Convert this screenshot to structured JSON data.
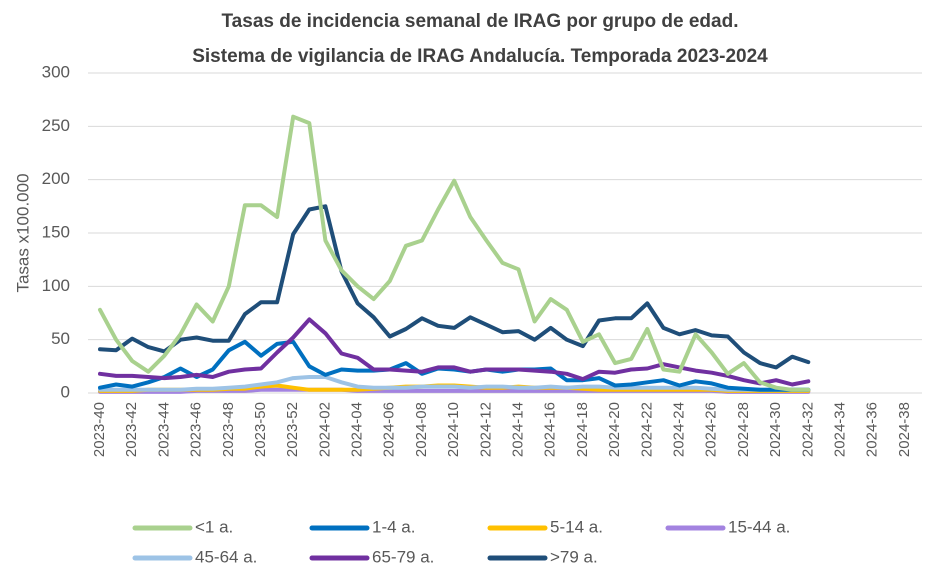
{
  "chart_data": {
    "type": "line",
    "title": [
      "Tasas de incidencia semanal de IRAG por grupo de edad.",
      "Sistema de vigilancia de IRAG Andalucía. Temporada 2023-2024"
    ],
    "y_label": "Tasas x100.000",
    "categories": [
      "2023-40",
      null,
      "2023-42",
      null,
      "2023-44",
      null,
      "2023-46",
      null,
      "2023-48",
      null,
      "2023-50",
      null,
      "2023-52",
      null,
      "2024-02",
      null,
      "2024-04",
      null,
      "2024-06",
      null,
      "2024-08",
      null,
      "2024-10",
      null,
      "2024-12",
      null,
      "2024-14",
      null,
      "2024-16",
      null,
      "2024-18",
      null,
      "2024-20",
      null,
      "2024-22",
      null,
      "2024-24",
      null,
      "2024-26",
      null,
      "2024-28",
      null,
      "2024-30",
      null,
      "2024-32",
      null,
      "2024-34",
      null,
      "2024-36",
      null,
      "2024-38",
      null
    ],
    "ylim": [
      0,
      300
    ],
    "yticks": [
      0,
      50,
      100,
      150,
      200,
      250,
      300
    ],
    "grid": true,
    "series": [
      {
        "name": "<1 a.",
        "color": "#a9d18e",
        "values": [
          78,
          50,
          30,
          20,
          35,
          55,
          83,
          67,
          100,
          176,
          176,
          165,
          259,
          253,
          143,
          115,
          100,
          88,
          105,
          138,
          143,
          172,
          199,
          165,
          143,
          122,
          116,
          67,
          88,
          78,
          48,
          55,
          28,
          32,
          60,
          22,
          20,
          55,
          38,
          18,
          28,
          10,
          5,
          3,
          3,
          null,
          null,
          null,
          null,
          null,
          null,
          null
        ]
      },
      {
        "name": "1-4 a.",
        "color": "#0070c0",
        "values": [
          5,
          8,
          6,
          10,
          15,
          23,
          15,
          22,
          40,
          48,
          35,
          46,
          48,
          25,
          17,
          22,
          21,
          21,
          22,
          28,
          18,
          23,
          22,
          20,
          22,
          20,
          22,
          22,
          23,
          12,
          12,
          14,
          7,
          8,
          10,
          12,
          7,
          11,
          9,
          5,
          4,
          3,
          3,
          3,
          3,
          null,
          null,
          null,
          null,
          null,
          null,
          null
        ]
      },
      {
        "name": "5-14 a.",
        "color": "#ffc000",
        "values": [
          2,
          2,
          2,
          3,
          3,
          3,
          3,
          3,
          4,
          4,
          6,
          7,
          5,
          3,
          3,
          3,
          3,
          4,
          5,
          6,
          6,
          7,
          7,
          6,
          5,
          5,
          6,
          5,
          5,
          5,
          4,
          3,
          3,
          3,
          3,
          3,
          3,
          3,
          3,
          2,
          2,
          2,
          2,
          2,
          2,
          null,
          null,
          null,
          null,
          null,
          null,
          null
        ]
      },
      {
        "name": "15-44 a.",
        "color": "#a383e0",
        "values": [
          1,
          1,
          1,
          1,
          1,
          1,
          2,
          2,
          2,
          2,
          3,
          3,
          3,
          3,
          3,
          3,
          2,
          2,
          2,
          2,
          2,
          2,
          2,
          2,
          2,
          2,
          2,
          2,
          2,
          2,
          2,
          2,
          2,
          2,
          2,
          2,
          2,
          2,
          2,
          1,
          1,
          1,
          1,
          1,
          1,
          null,
          null,
          null,
          null,
          null,
          null,
          null
        ]
      },
      {
        "name": "45-64 a.",
        "color": "#9dc3e6",
        "values": [
          3,
          3,
          3,
          3,
          3,
          3,
          4,
          4,
          5,
          6,
          8,
          10,
          14,
          15,
          15,
          10,
          6,
          5,
          5,
          5,
          6,
          6,
          6,
          5,
          6,
          6,
          5,
          5,
          6,
          5,
          6,
          6,
          5,
          5,
          5,
          5,
          5,
          5,
          4,
          3,
          3,
          3,
          3,
          3,
          3,
          null,
          null,
          null,
          null,
          null,
          null,
          null
        ]
      },
      {
        "name": "65-79 a.",
        "color": "#7030a0",
        "values": [
          18,
          16,
          16,
          15,
          14,
          15,
          17,
          15,
          20,
          22,
          23,
          38,
          52,
          69,
          56,
          37,
          33,
          22,
          22,
          21,
          20,
          24,
          24,
          20,
          22,
          22,
          22,
          21,
          20,
          18,
          13,
          20,
          19,
          22,
          23,
          27,
          24,
          21,
          19,
          16,
          12,
          9,
          12,
          8,
          11,
          null,
          null,
          null,
          null,
          null,
          null,
          null
        ]
      },
      {
        "name": ">79 a.",
        "color": "#1f4e79",
        "values": [
          41,
          40,
          51,
          43,
          39,
          50,
          52,
          49,
          49,
          74,
          85,
          85,
          149,
          172,
          175,
          114,
          84,
          71,
          53,
          60,
          70,
          63,
          61,
          71,
          64,
          57,
          58,
          50,
          61,
          50,
          44,
          68,
          70,
          70,
          84,
          61,
          55,
          59,
          54,
          53,
          38,
          28,
          24,
          34,
          29,
          null,
          null,
          null,
          null,
          null,
          null,
          null
        ]
      }
    ]
  }
}
